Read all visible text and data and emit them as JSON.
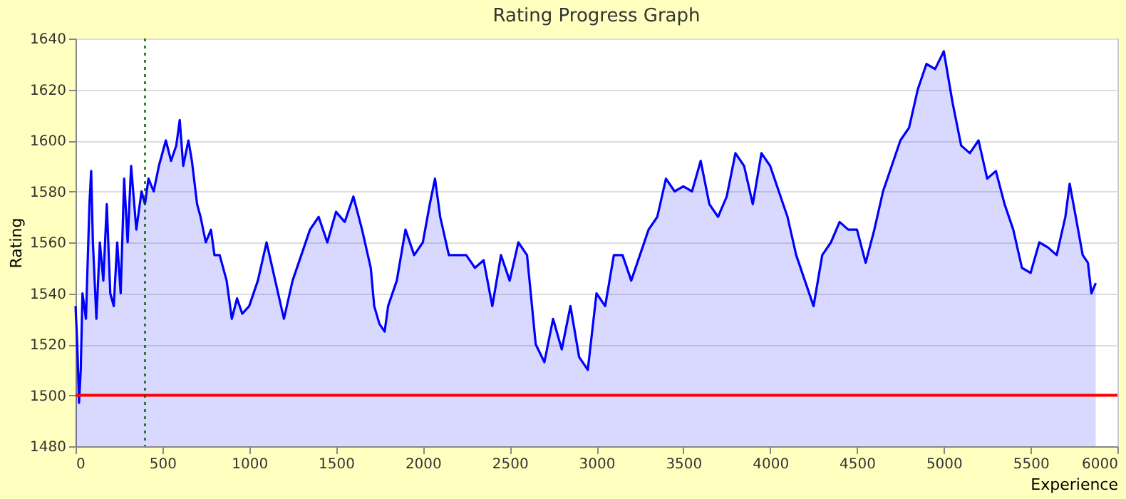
{
  "chart_data": {
    "type": "area",
    "title": "Rating Progress Graph",
    "xlabel": "Experience",
    "ylabel": "Rating",
    "xlim": [
      0,
      6000
    ],
    "xticks": [
      0,
      500,
      1000,
      1500,
      2000,
      2500,
      3000,
      3500,
      4000,
      4500,
      5000,
      5500,
      6000
    ],
    "ylim": [
      1480,
      1640
    ],
    "yticks": [
      1480,
      1500,
      1520,
      1540,
      1560,
      1580,
      1600,
      1620,
      1640
    ],
    "grid": "y",
    "x": [
      0,
      10,
      20,
      30,
      40,
      60,
      80,
      90,
      100,
      120,
      140,
      160,
      180,
      200,
      220,
      240,
      260,
      280,
      300,
      320,
      350,
      380,
      400,
      420,
      450,
      480,
      520,
      550,
      580,
      600,
      620,
      650,
      670,
      700,
      720,
      750,
      780,
      800,
      830,
      870,
      900,
      930,
      960,
      1000,
      1050,
      1100,
      1150,
      1200,
      1250,
      1300,
      1350,
      1400,
      1450,
      1500,
      1550,
      1600,
      1650,
      1700,
      1720,
      1750,
      1780,
      1800,
      1850,
      1900,
      1950,
      2000,
      2040,
      2070,
      2100,
      2150,
      2200,
      2250,
      2300,
      2350,
      2400,
      2450,
      2500,
      2550,
      2600,
      2650,
      2700,
      2750,
      2800,
      2850,
      2900,
      2950,
      3000,
      3050,
      3100,
      3150,
      3200,
      3250,
      3300,
      3350,
      3400,
      3450,
      3500,
      3550,
      3600,
      3650,
      3700,
      3750,
      3800,
      3850,
      3900,
      3950,
      4000,
      4050,
      4100,
      4150,
      4200,
      4250,
      4300,
      4350,
      4400,
      4450,
      4500,
      4550,
      4600,
      4650,
      4700,
      4750,
      4800,
      4850,
      4900,
      4950,
      5000,
      5050,
      5100,
      5150,
      5200,
      5250,
      5300,
      5350,
      5400,
      5450,
      5500,
      5550,
      5600,
      5650,
      5700,
      5725,
      5760,
      5800,
      5830,
      5850,
      5875
    ],
    "series": [
      {
        "color": "#0000ff",
        "values": [
          1535,
          1520,
          1497,
          1510,
          1540,
          1530,
          1575,
          1588,
          1560,
          1530,
          1560,
          1545,
          1575,
          1540,
          1535,
          1560,
          1540,
          1585,
          1560,
          1590,
          1565,
          1580,
          1575,
          1585,
          1580,
          1590,
          1600,
          1592,
          1598,
          1608,
          1590,
          1600,
          1592,
          1575,
          1570,
          1560,
          1565,
          1555,
          1555,
          1545,
          1530,
          1538,
          1532,
          1535,
          1545,
          1560,
          1545,
          1530,
          1545,
          1555,
          1565,
          1570,
          1560,
          1572,
          1568,
          1578,
          1565,
          1550,
          1535,
          1528,
          1525,
          1535,
          1545,
          1565,
          1555,
          1560,
          1575,
          1585,
          1570,
          1555,
          1555,
          1555,
          1550,
          1553,
          1535,
          1555,
          1545,
          1560,
          1555,
          1520,
          1513,
          1530,
          1518,
          1535,
          1515,
          1510,
          1540,
          1535,
          1555,
          1555,
          1545,
          1555,
          1565,
          1570,
          1585,
          1580,
          1582,
          1580,
          1592,
          1575,
          1570,
          1578,
          1595,
          1590,
          1575,
          1595,
          1590,
          1580,
          1570,
          1555,
          1545,
          1535,
          1555,
          1560,
          1568,
          1565,
          1565,
          1552,
          1565,
          1580,
          1590,
          1600,
          1605,
          1620,
          1630,
          1628,
          1635,
          1615,
          1598,
          1595,
          1600,
          1585,
          1588,
          1575,
          1565,
          1550,
          1548,
          1560,
          1558,
          1555,
          1570,
          1583,
          1570,
          1555,
          1552,
          1540,
          1544
        ]
      }
    ],
    "ref_lines": [
      {
        "axis": "y",
        "value": 1500,
        "color": "#ff0000",
        "line_style": "solid"
      },
      {
        "axis": "x",
        "value": 400,
        "color": "#006400",
        "line_style": "dotted"
      }
    ]
  }
}
